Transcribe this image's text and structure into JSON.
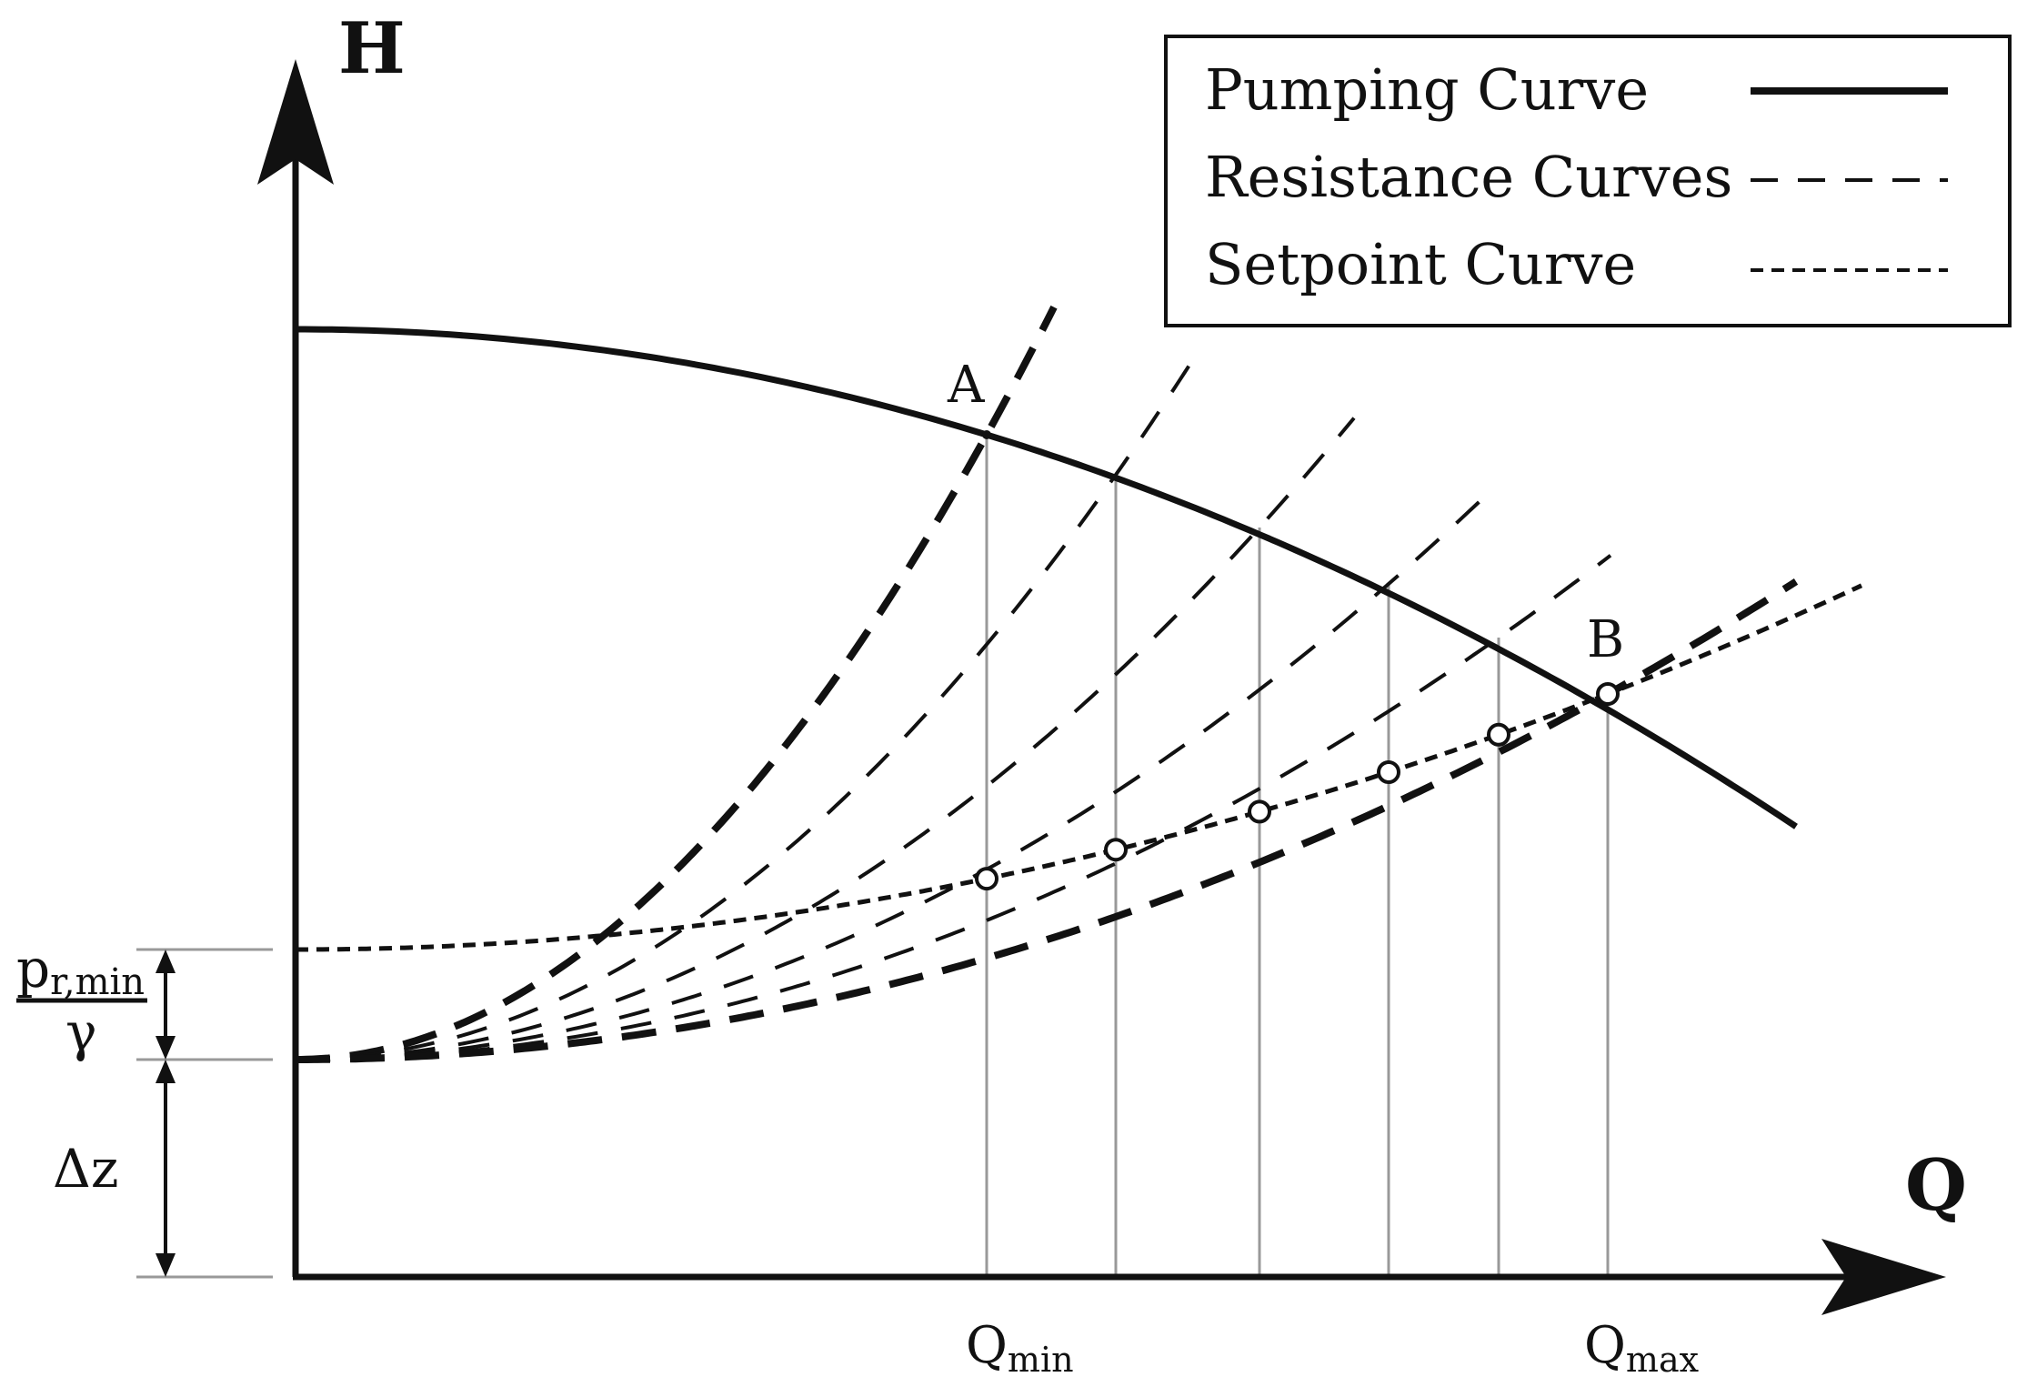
{
  "axes": {
    "y_title": "H",
    "x_title": "Q"
  },
  "legend": {
    "pumping": "Pumping Curve",
    "resistance": "Resistance Curves",
    "setpoint": "Setpoint Curve"
  },
  "points": {
    "a": "A",
    "b": "B"
  },
  "ticks": {
    "qmin_base": "Q",
    "qmin_sub": "min",
    "qmax_base": "Q",
    "qmax_sub": "max"
  },
  "side": {
    "p_base": "p",
    "p_sub": "r,min",
    "gamma": "γ",
    "dz": "Δz"
  }
}
